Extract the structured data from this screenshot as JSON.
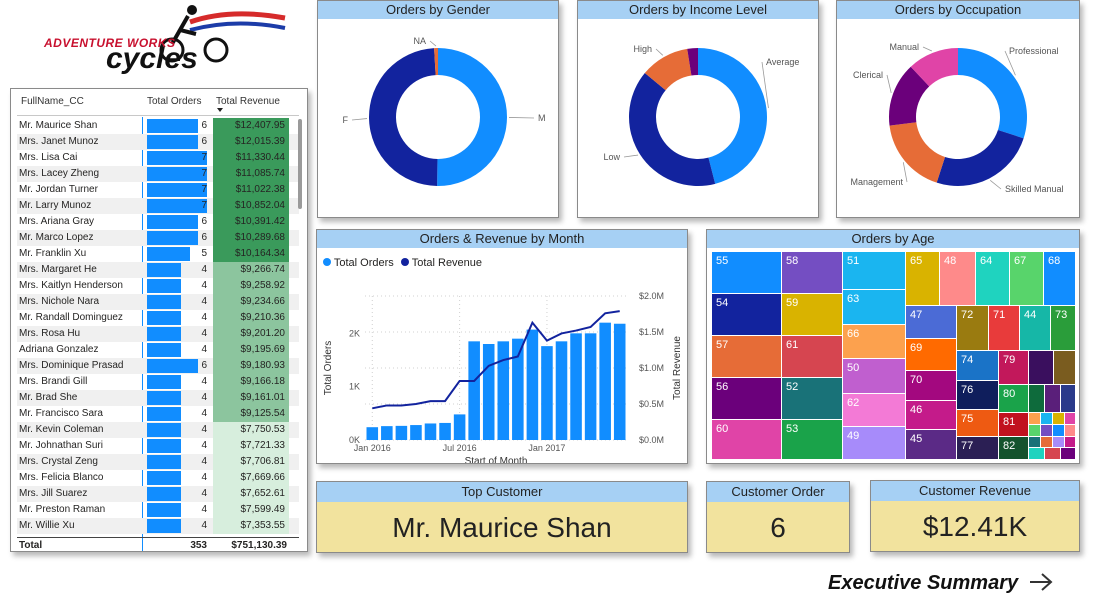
{
  "logo": {
    "line1": "ADVENTURE WORKS",
    "line2": "cycles"
  },
  "table": {
    "headers": {
      "name": "FullName_CC",
      "orders": "Total Orders",
      "revenue": "Total Revenue"
    },
    "rows": [
      {
        "name": "Mr. Maurice Shan",
        "orders": 6,
        "revenue": "$12,407.95"
      },
      {
        "name": "Mrs. Janet Munoz",
        "orders": 6,
        "revenue": "$12,015.39"
      },
      {
        "name": "Mrs. Lisa Cai",
        "orders": 7,
        "revenue": "$11,330.44"
      },
      {
        "name": "Mrs. Lacey Zheng",
        "orders": 7,
        "revenue": "$11,085.74"
      },
      {
        "name": "Mr. Jordan Turner",
        "orders": 7,
        "revenue": "$11,022.38"
      },
      {
        "name": "Mr. Larry Munoz",
        "orders": 7,
        "revenue": "$10,852.04"
      },
      {
        "name": "Mrs. Ariana Gray",
        "orders": 6,
        "revenue": "$10,391.42"
      },
      {
        "name": "Mr. Marco Lopez",
        "orders": 6,
        "revenue": "$10,289.68"
      },
      {
        "name": "Mr. Franklin Xu",
        "orders": 5,
        "revenue": "$10,164.34"
      },
      {
        "name": "Mrs. Margaret He",
        "orders": 4,
        "revenue": "$9,266.74"
      },
      {
        "name": "Mrs. Kaitlyn Henderson",
        "orders": 4,
        "revenue": "$9,258.92"
      },
      {
        "name": "Mrs. Nichole Nara",
        "orders": 4,
        "revenue": "$9,234.66"
      },
      {
        "name": "Mr. Randall Dominguez",
        "orders": 4,
        "revenue": "$9,210.36"
      },
      {
        "name": "Mrs. Rosa Hu",
        "orders": 4,
        "revenue": "$9,201.20"
      },
      {
        "name": "Adriana Gonzalez",
        "orders": 4,
        "revenue": "$9,195.69"
      },
      {
        "name": "Mrs. Dominique Prasad",
        "orders": 6,
        "revenue": "$9,180.93"
      },
      {
        "name": "Mrs. Brandi Gill",
        "orders": 4,
        "revenue": "$9,166.18"
      },
      {
        "name": "Mr. Brad She",
        "orders": 4,
        "revenue": "$9,161.01"
      },
      {
        "name": "Mr. Francisco Sara",
        "orders": 4,
        "revenue": "$9,125.54"
      },
      {
        "name": "Mr. Kevin Coleman",
        "orders": 4,
        "revenue": "$7,750.53"
      },
      {
        "name": "Mr. Johnathan Suri",
        "orders": 4,
        "revenue": "$7,721.33"
      },
      {
        "name": "Mrs. Crystal Zeng",
        "orders": 4,
        "revenue": "$7,706.81"
      },
      {
        "name": "Mrs. Felicia Blanco",
        "orders": 4,
        "revenue": "$7,669.66"
      },
      {
        "name": "Mrs. Jill Suarez",
        "orders": 4,
        "revenue": "$7,652.61"
      },
      {
        "name": "Mr. Preston Raman",
        "orders": 4,
        "revenue": "$7,599.49"
      },
      {
        "name": "Mr. Willie Xu",
        "orders": 4,
        "revenue": "$7,353.55"
      }
    ],
    "total": {
      "label": "Total",
      "orders": "353",
      "revenue": "$751,130.39"
    }
  },
  "donuts": {
    "gender": {
      "title": "Orders by Gender",
      "slices": [
        {
          "label": "M",
          "value": 50.2,
          "color": "#118dff"
        },
        {
          "label": "F",
          "value": 48.9,
          "color": "#12239e"
        },
        {
          "label": "NA",
          "value": 0.9,
          "color": "#e66c37"
        }
      ]
    },
    "income": {
      "title": "Orders by Income Level",
      "slices": [
        {
          "label": "Average",
          "value": 46,
          "color": "#118dff"
        },
        {
          "label": "Low",
          "value": 40,
          "color": "#12239e"
        },
        {
          "label": "High",
          "value": 11.5,
          "color": "#e66c37"
        },
        {
          "label": "",
          "value": 2.5,
          "color": "#6b007b"
        }
      ]
    },
    "occupation": {
      "title": "Orders by Occupation",
      "slices": [
        {
          "label": "Professional",
          "value": 30,
          "color": "#118dff"
        },
        {
          "label": "Skilled Manual",
          "value": 25,
          "color": "#12239e"
        },
        {
          "label": "Management",
          "value": 18,
          "color": "#e66c37"
        },
        {
          "label": "Clerical",
          "value": 15,
          "color": "#6b007b"
        },
        {
          "label": "Manual",
          "value": 12,
          "color": "#e044a7"
        }
      ]
    }
  },
  "monthly": {
    "title": "Orders & Revenue by Month",
    "legend": [
      {
        "label": "Total Orders",
        "color": "#118dff"
      },
      {
        "label": "Total Revenue",
        "color": "#12239e"
      }
    ],
    "xlabel": "Start of Month",
    "ylabel_left": "Total Orders",
    "ylabel_right": "Total Revenue"
  },
  "chart_data": {
    "type": "bar",
    "categories": [
      "2016-01",
      "2016-02",
      "2016-03",
      "2016-04",
      "2016-05",
      "2016-06",
      "2016-07",
      "2016-08",
      "2016-09",
      "2016-10",
      "2016-11",
      "2016-12",
      "2017-01",
      "2017-02",
      "2017-03",
      "2017-04",
      "2017-05",
      "2017-06"
    ],
    "x_tick_labels": [
      "Jan 2016",
      "Jul 2016",
      "Jan 2017"
    ],
    "series": [
      {
        "name": "Total Orders",
        "axis": "left",
        "values": [
          240,
          260,
          265,
          280,
          310,
          320,
          480,
          1850,
          1800,
          1850,
          1900,
          2070,
          1760,
          1850,
          2000,
          2000,
          2200,
          2180
        ]
      },
      {
        "name": "Total Revenue",
        "axis": "right",
        "values": [
          440000,
          480000,
          480000,
          500000,
          540000,
          540000,
          820000,
          820000,
          1030000,
          1110000,
          1160000,
          1630000,
          1380000,
          1480000,
          1520000,
          1570000,
          1760000,
          1790000
        ]
      }
    ],
    "ylim_left": [
      0,
      2700
    ],
    "yticks_left": [
      "0K",
      "1K",
      "2K"
    ],
    "ylim_right": [
      0,
      2000000
    ],
    "yticks_right": [
      "$0.0M",
      "$0.5M",
      "$1.0M",
      "$1.5M",
      "$2.0M"
    ]
  },
  "treemap": {
    "title": "Orders by Age",
    "cells": [
      {
        "label": "55",
        "color": "#118dff"
      },
      {
        "label": "58",
        "color": "#744ec2"
      },
      {
        "label": "51",
        "color": "#1ab5f0"
      },
      {
        "label": "65",
        "color": "#d9b300"
      },
      {
        "label": "48",
        "color": "#fe8a8a"
      },
      {
        "label": "64",
        "color": "#1fd3bf"
      },
      {
        "label": "67",
        "color": "#58d46b"
      },
      {
        "label": "68",
        "color": "#118dff"
      },
      {
        "label": "54",
        "color": "#12239e"
      },
      {
        "label": "59",
        "color": "#d9b300"
      },
      {
        "label": "63",
        "color": "#1ab5f0"
      },
      {
        "label": "47",
        "color": "#4b6bd6"
      },
      {
        "label": "72",
        "color": "#9a7b10"
      },
      {
        "label": "71",
        "color": "#e83b3b"
      },
      {
        "label": "44",
        "color": "#16b7a7"
      },
      {
        "label": "73",
        "color": "#2a9d3a"
      },
      {
        "label": "57",
        "color": "#e66c37"
      },
      {
        "label": "61",
        "color": "#d64550"
      },
      {
        "label": "66",
        "color": "#fca14e"
      },
      {
        "label": "69",
        "color": "#ff6a00"
      },
      {
        "label": "74",
        "color": "#1a73c7"
      },
      {
        "label": "79",
        "color": "#c2185b"
      },
      {
        "label": "56",
        "color": "#6b007b"
      },
      {
        "label": "52",
        "color": "#197278"
      },
      {
        "label": "50",
        "color": "#c05fcf"
      },
      {
        "label": "70",
        "color": "#a3087f"
      },
      {
        "label": "76",
        "color": "#0f1e5c"
      },
      {
        "label": "80",
        "color": "#1aa34a"
      },
      {
        "label": "60",
        "color": "#e044a7"
      },
      {
        "label": "53",
        "color": "#1aa34a"
      },
      {
        "label": "62",
        "color": "#f37ad6"
      },
      {
        "label": "46",
        "color": "#c41b8a"
      },
      {
        "label": "75",
        "color": "#ee5a12"
      },
      {
        "label": "81",
        "color": "#c1121f"
      },
      {
        "label": "49",
        "color": "#a78bfa"
      },
      {
        "label": "45",
        "color": "#5b2a86"
      },
      {
        "label": "77",
        "color": "#2b1f54"
      },
      {
        "label": "82",
        "color": "#14532d"
      }
    ]
  },
  "cards": {
    "top_customer": {
      "title": "Top Customer",
      "value": "Mr. Maurice Shan"
    },
    "customer_order": {
      "title": "Customer Order",
      "value": "6"
    },
    "customer_revenue": {
      "title": "Customer Revenue",
      "value": "$12.41K"
    }
  },
  "nav": {
    "label": "Executive Summary",
    "icon": "arrow-right-icon"
  }
}
